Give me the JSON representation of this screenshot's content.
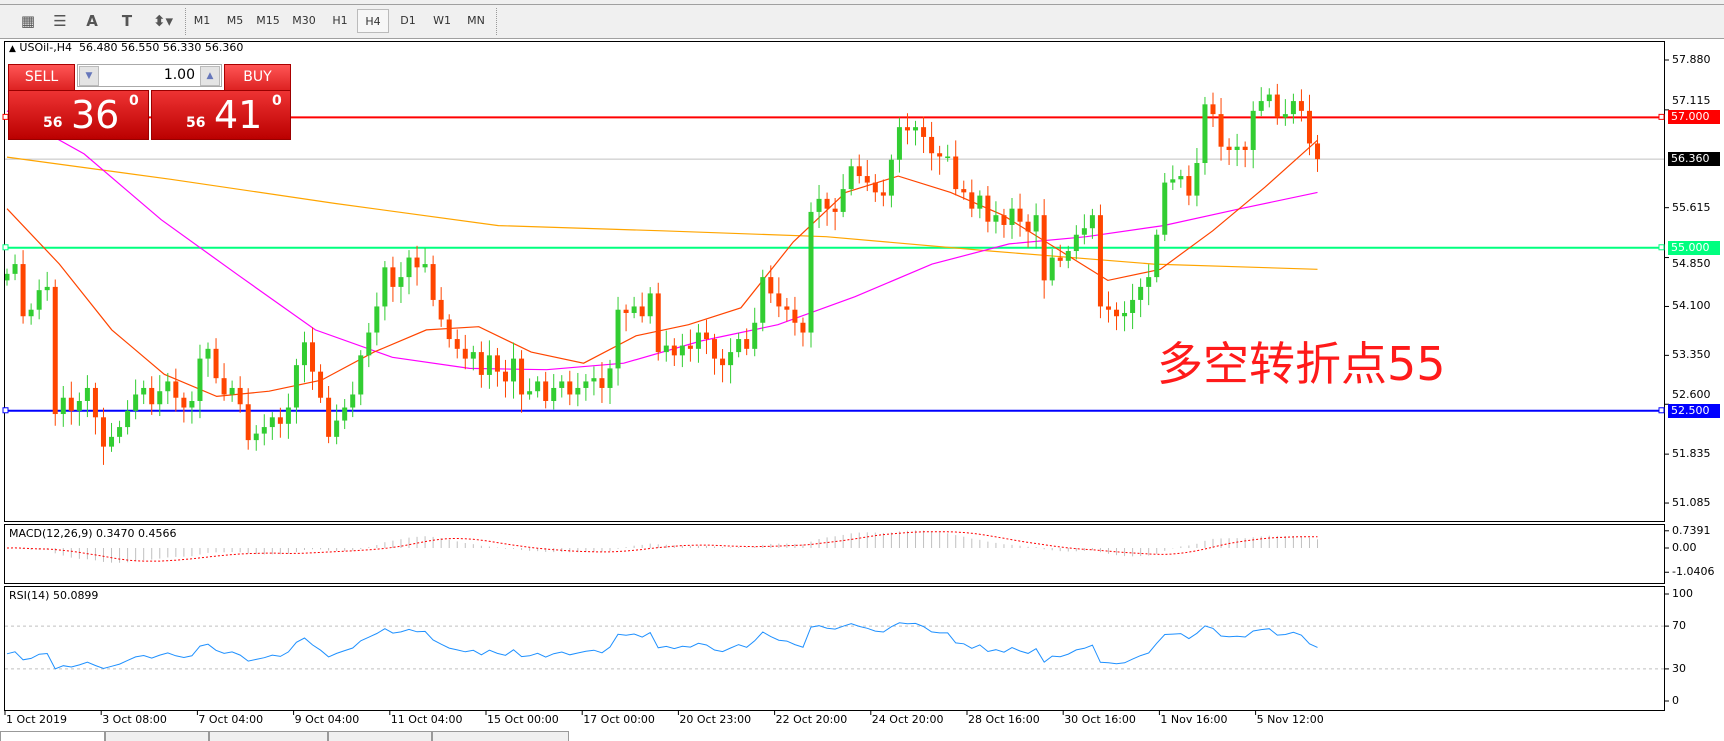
{
  "toolbar": {
    "tools": [
      {
        "icon": "equidistant-channel-icon",
        "glyph": "▦"
      },
      {
        "icon": "fibonacci-icon",
        "glyph": "☰"
      },
      {
        "icon": "text-icon",
        "glyph": "A"
      },
      {
        "icon": "text-label-icon",
        "glyph": "T"
      },
      {
        "icon": "arrows-dropdown-icon",
        "glyph": "⬍▾"
      }
    ],
    "timeframes": [
      "M1",
      "M5",
      "M15",
      "M30",
      "H1",
      "H4",
      "D1",
      "W1",
      "MN"
    ],
    "selected_timeframe": "H4"
  },
  "chart": {
    "header": "USOil-,H4  56.480 56.550 56.330 56.360",
    "header_arrow": "▲",
    "annotation": "多空转折点55",
    "colors": {
      "up": "#32cd32",
      "down": "#ff4500",
      "ma_fast": "#ff4500",
      "ma_mid": "#ff00ff",
      "ma_slow": "#ffa500",
      "rsi": "#1e90ff",
      "macd_signal": "#ff0000",
      "macd_hist": "#c0c0c0"
    }
  },
  "trade_panel": {
    "sell_label": "SELL",
    "buy_label": "BUY",
    "lot": "1.00",
    "sell_price": {
      "prefix": "56",
      "big": "36",
      "sup": "0"
    },
    "buy_price": {
      "prefix": "56",
      "big": "41",
      "sup": "0"
    }
  },
  "price_axis": {
    "ticks": [
      "57.880",
      "57.115",
      "55.615",
      "54.850",
      "54.100",
      "53.350",
      "52.600",
      "51.835",
      "51.085"
    ],
    "tick_values": [
      57.88,
      57.115,
      55.615,
      54.85,
      54.1,
      53.35,
      52.6,
      51.835,
      51.085
    ],
    "current": {
      "label": "56.360",
      "value": 56.36,
      "color": "#000000"
    },
    "lines": [
      {
        "label": "57.000",
        "value": 57.0,
        "color": "#ff0000"
      },
      {
        "label": "55.000",
        "value": 55.0,
        "color": "#00ff7f"
      },
      {
        "label": "52.500",
        "value": 52.5,
        "color": "#0000ff"
      }
    ]
  },
  "macd": {
    "title": "MACD(12,26,9) 0.3470 0.4566",
    "ticks": [
      "0.7391",
      "0.00",
      "-1.0406"
    ],
    "tick_values": [
      0.7391,
      0,
      -1.0406
    ]
  },
  "rsi": {
    "title": "RSI(14) 50.0899",
    "ticks": [
      "100",
      "70",
      "30",
      "0"
    ],
    "tick_values": [
      100,
      70,
      30,
      0
    ],
    "levels": [
      70,
      30
    ]
  },
  "time_axis": [
    "1 Oct 2019",
    "3 Oct 08:00",
    "7 Oct 04:00",
    "9 Oct 04:00",
    "11 Oct 04:00",
    "15 Oct 00:00",
    "17 Oct 00:00",
    "20 Oct 23:00",
    "22 Oct 20:00",
    "24 Oct 20:00",
    "28 Oct 16:00",
    "30 Oct 16:00",
    "1 Nov 16:00",
    "5 Nov 12:00"
  ],
  "chart_data": {
    "type": "candlestick",
    "symbol": "USOil-",
    "timeframe": "H4",
    "ylim": [
      50.81,
      58.17
    ],
    "first_open": 54.5,
    "close": [
      54.6,
      54.75,
      53.95,
      54.05,
      54.35,
      54.4,
      52.45,
      52.7,
      52.5,
      52.65,
      52.85,
      52.4,
      51.95,
      52.1,
      52.25,
      52.5,
      52.75,
      52.85,
      52.6,
      52.8,
      52.95,
      52.7,
      52.55,
      52.65,
      53.3,
      53.45,
      53.0,
      52.75,
      52.85,
      52.6,
      52.05,
      52.15,
      52.25,
      52.4,
      52.3,
      52.55,
      53.2,
      53.55,
      53.1,
      52.7,
      52.1,
      52.35,
      52.55,
      52.75,
      53.35,
      53.7,
      54.1,
      54.7,
      54.4,
      54.55,
      54.85,
      54.7,
      54.75,
      54.2,
      53.9,
      53.6,
      53.45,
      53.3,
      53.4,
      53.05,
      53.35,
      53.1,
      52.95,
      53.3,
      52.75,
      52.8,
      52.95,
      52.65,
      52.85,
      52.95,
      52.75,
      52.85,
      52.95,
      53.0,
      52.85,
      53.15,
      54.05,
      54.0,
      54.1,
      53.95,
      54.3,
      53.4,
      53.5,
      53.35,
      53.5,
      53.45,
      53.7,
      53.6,
      53.3,
      53.2,
      53.4,
      53.6,
      53.45,
      53.85,
      54.55,
      54.3,
      54.1,
      54.05,
      53.85,
      53.7,
      55.55,
      55.75,
      55.6,
      55.55,
      55.9,
      56.25,
      56.1,
      56.0,
      55.85,
      55.8,
      56.35,
      56.85,
      56.8,
      56.85,
      56.7,
      56.45,
      56.4,
      56.4,
      55.9,
      55.85,
      55.6,
      55.8,
      55.4,
      55.5,
      55.35,
      55.6,
      55.4,
      55.25,
      55.5,
      54.5,
      54.85,
      54.8,
      54.95,
      55.2,
      55.3,
      55.5,
      54.1,
      54.05,
      53.95,
      54.0,
      54.2,
      54.4,
      54.55,
      55.2,
      56.0,
      56.05,
      56.1,
      55.8,
      56.3,
      57.2,
      57.05,
      56.55,
      56.5,
      56.55,
      56.5,
      57.1,
      57.25,
      57.35,
      57.0,
      57.05,
      57.25,
      57.1,
      56.6,
      56.36
    ],
    "ma_fast_sampled": [
      55.6,
      54.75,
      53.74,
      53.06,
      52.72,
      52.8,
      52.97,
      53.4,
      53.74,
      53.79,
      53.4,
      53.23,
      53.65,
      53.82,
      54.08,
      55.09,
      55.85,
      56.1,
      55.85,
      55.5,
      55.0,
      54.5,
      54.67,
      55.26,
      55.93,
      56.65
    ],
    "ma_mid_sampled": [
      57.1,
      56.44,
      55.43,
      54.58,
      53.74,
      53.32,
      53.15,
      53.13,
      53.23,
      53.57,
      53.82,
      54.25,
      54.75,
      55.06,
      55.17,
      55.34,
      55.6,
      55.85
    ],
    "ma_slow_sampled": [
      56.39,
      56.05,
      55.68,
      55.34,
      55.26,
      55.17,
      54.95,
      54.75,
      54.67
    ]
  },
  "bottom_tabs": 5
}
